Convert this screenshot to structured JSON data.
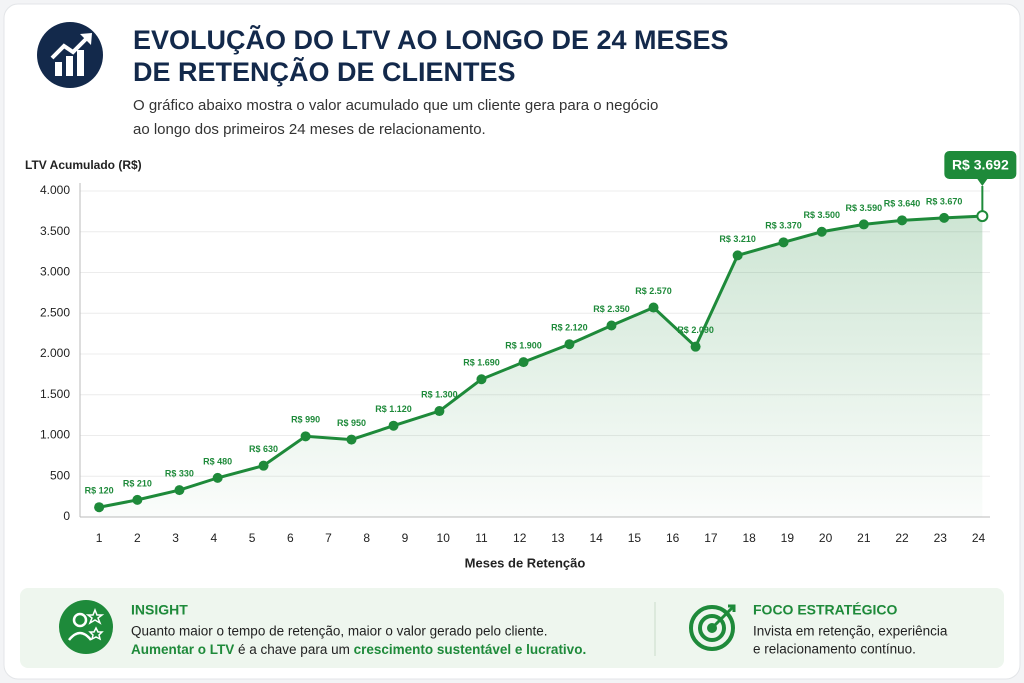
{
  "chart_data": {
    "type": "line",
    "title_lines": [
      "EVOLUÇÃO DO LTV AO LONGO DE 24 MESES",
      "DE RETENÇÃO DE CLIENTES"
    ],
    "subtitle_lines": [
      "O gráfico abaixo mostra o valor acumulado que um cliente gera para o negócio",
      "ao longo dos primeiros 24 meses de relacionamento."
    ],
    "y_label": "LTV Acumulado (R$)",
    "x_label": "Meses de Retenção",
    "x": [
      1,
      2,
      3.1,
      4.1,
      5.3,
      6.4,
      7.6,
      8.7,
      9.9,
      11,
      12.1,
      13.3,
      14.4,
      15.5,
      16.6,
      17.7,
      18.9,
      19.9,
      21,
      22,
      23.1,
      24.1
    ],
    "values": [
      120,
      210,
      330,
      480,
      630,
      990,
      950,
      1120,
      1300,
      1690,
      1900,
      2120,
      2350,
      2570,
      2090,
      3210,
      3370,
      3500,
      3590,
      3640,
      3670,
      3692
    ],
    "value_labels": [
      "R$ 120",
      "R$ 210",
      "R$ 330",
      "R$ 480",
      "R$ 630",
      "R$ 990",
      "R$ 950",
      "R$ 1.120",
      "R$ 1.300",
      "R$ 1.690",
      "R$ 1.900",
      "R$ 2.120",
      "R$ 2.350",
      "R$ 2.570",
      "R$ 2.090",
      "R$ 3.210",
      "R$ 3.370",
      "R$ 3.500",
      "R$ 3.590",
      "R$ 3.640",
      "R$ 3.670",
      "R$ 3.692"
    ],
    "color": "#1e8a3a",
    "xlim": [
      0.5,
      24.3
    ],
    "xticks": [
      1,
      2,
      3,
      4,
      5,
      6,
      7,
      8,
      9,
      10,
      11,
      12,
      13,
      14,
      15,
      16,
      17,
      18,
      19,
      20,
      21,
      22,
      23,
      24
    ],
    "ylim": [
      0,
      4000
    ],
    "yticks": [
      0,
      500,
      {
        "value": 1000,
        "label": "1.000"
      },
      {
        "value": 1500,
        "label": "1.500"
      },
      {
        "value": 2000,
        "label": "2.000"
      },
      {
        "value": 2500,
        "label": "2.500"
      },
      {
        "value": 3000,
        "label": "3.000"
      },
      {
        "value": 3500,
        "label": "3.500"
      },
      {
        "value": 4000,
        "label": "4.000"
      }
    ],
    "grid": true
  },
  "insight": {
    "heading": "INSIGHT",
    "line1": "Quanto maior o tempo de retenção, maior o valor gerado pelo cliente.",
    "line2": [
      "Aumentar o LTV",
      " é a chave para um ",
      "crescimento sustentável e lucrativo."
    ]
  },
  "focus": {
    "heading": "FOCO ESTRATÉGICO",
    "line1": "Invista em retenção, experiência",
    "line2": "e relacionamento contínuo."
  }
}
